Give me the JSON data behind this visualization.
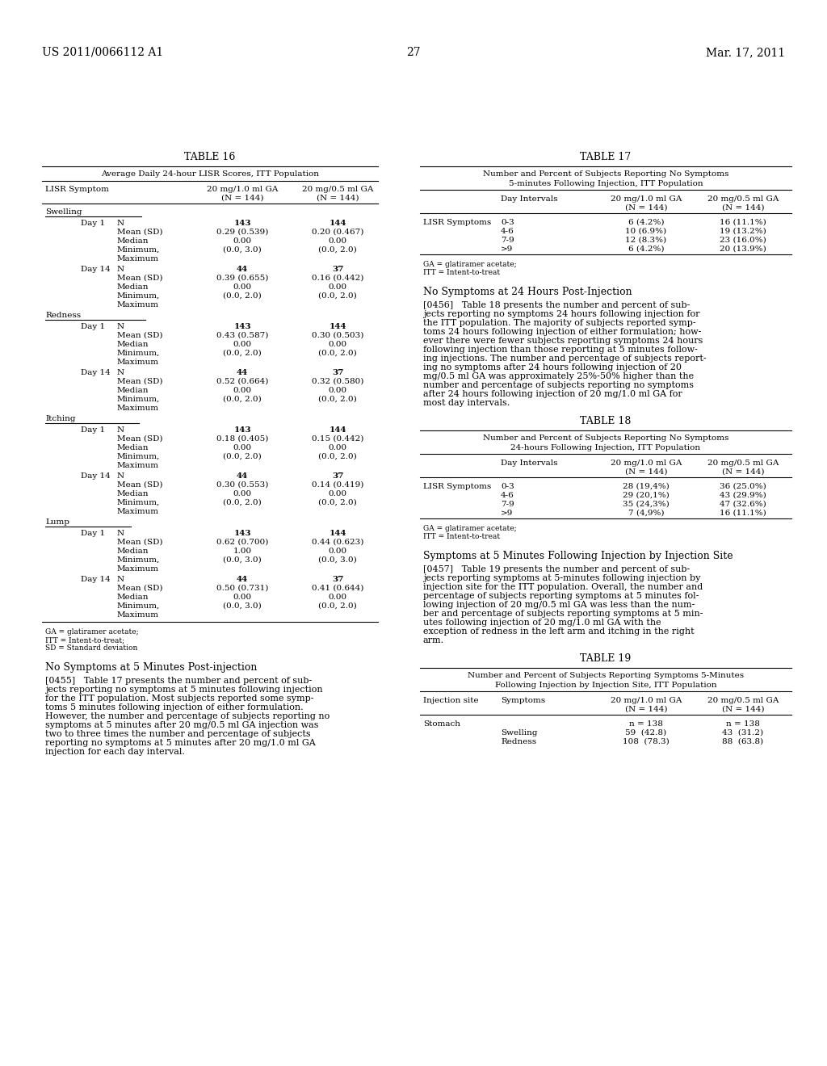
{
  "background_color": "#ffffff",
  "header_left": "US 2011/0066112 A1",
  "header_right": "Mar. 17, 2011",
  "page_number": "27"
}
